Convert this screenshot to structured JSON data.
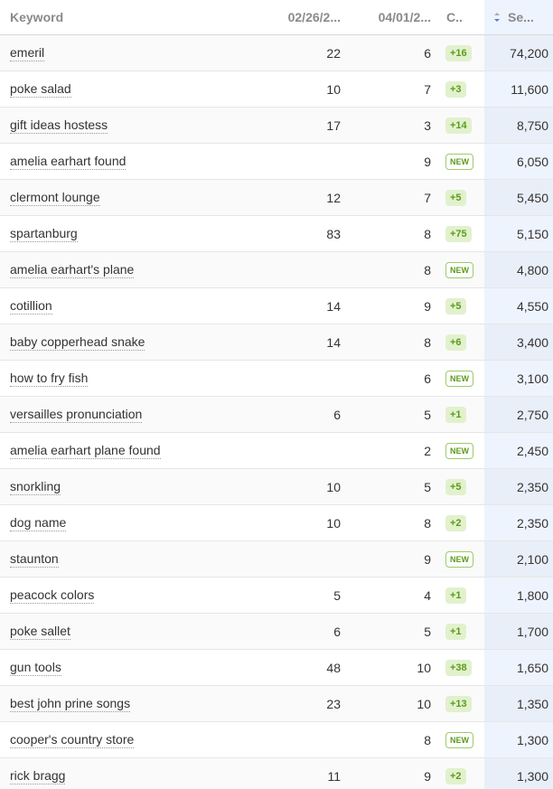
{
  "table": {
    "header": [
      "Keyword",
      "02/26/2...",
      "04/01/2...",
      "C..",
      "Se..."
    ],
    "rows": [
      [
        "emeril",
        "22",
        "6",
        "+16",
        "74,200"
      ],
      [
        "poke salad",
        "10",
        "7",
        "+3",
        "11,600"
      ],
      [
        "gift ideas hostess",
        "17",
        "3",
        "+14",
        "8,750"
      ],
      [
        "amelia earhart found",
        null,
        "9",
        "NEW",
        "6,050"
      ],
      [
        "clermont lounge",
        "12",
        "7",
        "+5",
        "5,450"
      ],
      [
        "spartanburg",
        "83",
        "8",
        "+75",
        "5,150"
      ],
      [
        "amelia earhart's plane",
        null,
        "8",
        "NEW",
        "4,800"
      ],
      [
        "cotillion",
        "14",
        "9",
        "+5",
        "4,550"
      ],
      [
        "baby copperhead snake",
        "14",
        "8",
        "+6",
        "3,400"
      ],
      [
        "how to fry fish",
        null,
        "6",
        "NEW",
        "3,100"
      ],
      [
        "versailles pronunciation",
        "6",
        "5",
        "+1",
        "2,750"
      ],
      [
        "amelia earhart plane found",
        null,
        "2",
        "NEW",
        "2,450"
      ],
      [
        "snorkling",
        "10",
        "5",
        "+5",
        "2,350"
      ],
      [
        "dog name",
        "10",
        "8",
        "+2",
        "2,350"
      ],
      [
        "staunton",
        null,
        "9",
        "NEW",
        "2,100"
      ],
      [
        "peacock colors",
        "5",
        "4",
        "+1",
        "1,800"
      ],
      [
        "poke sallet",
        "6",
        "5",
        "+1",
        "1,700"
      ],
      [
        "gun tools",
        "48",
        "10",
        "+38",
        "1,650"
      ],
      [
        "best john prine songs",
        "23",
        "10",
        "+13",
        "1,350"
      ],
      [
        "cooper's country store",
        null,
        "8",
        "NEW",
        "1,300"
      ],
      [
        "rick bragg",
        "11",
        "9",
        "+2",
        "1,300"
      ]
    ]
  }
}
